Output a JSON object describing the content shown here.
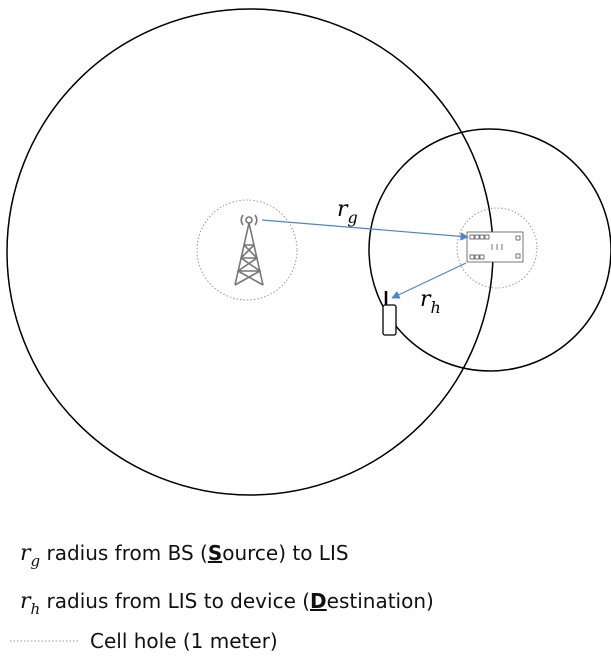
{
  "diagram": {
    "labels": {
      "rg": {
        "symbol": "r",
        "sub": "g"
      },
      "rh": {
        "symbol": "r",
        "sub": "h"
      }
    },
    "legend": [
      {
        "symbol": "r",
        "sub": "g",
        "before": " radius from BS (",
        "bold": "S",
        "after": "ource) to LIS"
      },
      {
        "symbol": "r",
        "sub": "h",
        "before": " radius from LIS to device (",
        "bold": "D",
        "after": "estination)"
      },
      {
        "text": "Cell hole (1 meter)"
      }
    ]
  }
}
